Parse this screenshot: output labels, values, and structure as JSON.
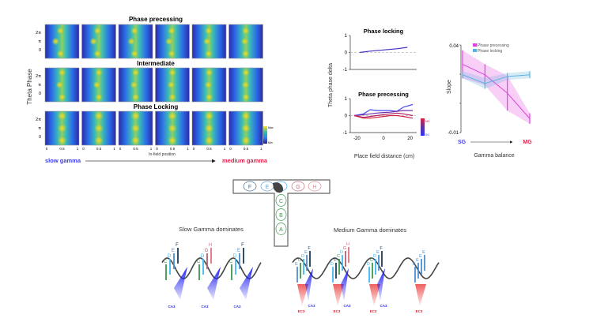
{
  "heatmap_panel": {
    "rows": [
      {
        "title": "Phase precessing"
      },
      {
        "title": "Intermediate"
      },
      {
        "title": "Phase Locking"
      }
    ],
    "y_axis_label": "Theta Phase",
    "y_ticks": [
      "2π",
      "π",
      "0"
    ],
    "x_ticks": [
      "0",
      "0.5",
      "1"
    ],
    "x_axis_label": "In-field position",
    "colorbar": {
      "max": "Max",
      "min": "Min"
    },
    "gradient_left": "slow gamma",
    "gradient_right": "medium gamma",
    "colors": {
      "slow": "#3a3af0",
      "medium": "#e0204a"
    }
  },
  "chart_data": [
    {
      "type": "line",
      "title": "Phase locking",
      "ylabel": "Theta phase delta",
      "xlabel": "Place field distance (cm)",
      "ylim": [
        -1,
        1
      ],
      "y_ticks": [
        "1",
        "0",
        "-1"
      ],
      "x": [
        -18,
        -10,
        0,
        10,
        18
      ],
      "series": [
        {
          "values": [
            0,
            0.08,
            0.15,
            0.22,
            0.3
          ]
        }
      ]
    },
    {
      "type": "line",
      "title": "Phase precessing",
      "ylabel": "Theta phase delta",
      "xlabel": "Place field distance (cm)",
      "xlim": [
        -25,
        25
      ],
      "ylim": [
        -1,
        1
      ],
      "x_ticks": [
        "-20",
        "0",
        "20"
      ],
      "y_ticks": [
        "1",
        "0",
        "-1"
      ],
      "colorbar": {
        "top": "MG",
        "bottom": "SG"
      },
      "x": [
        -22,
        -15,
        -10,
        -5,
        0,
        5,
        10,
        15,
        22
      ],
      "series": [
        {
          "color": "#4a4af5",
          "values": [
            0,
            0.1,
            0.35,
            0.3,
            0.3,
            0.3,
            0.25,
            0.5,
            0.65
          ]
        },
        {
          "color": "#7030b0",
          "values": [
            0,
            0.05,
            0.1,
            0.15,
            0.18,
            0.2,
            0.25,
            0.3,
            0.3
          ]
        },
        {
          "color": "#b02060",
          "values": [
            0,
            -0.1,
            -0.05,
            0,
            0.05,
            0.1,
            0.15,
            0.1,
            0
          ]
        },
        {
          "color": "#d02040",
          "values": [
            0,
            -0.15,
            -0.15,
            -0.1,
            -0.05,
            0,
            0,
            -0.05,
            -0.15
          ]
        }
      ]
    },
    {
      "type": "line",
      "ylabel": "Slope",
      "xlabel": "Gamma balance",
      "ylim": [
        -0.01,
        0.04
      ],
      "y_ticks": [
        "0.04",
        "-0.01"
      ],
      "x_labels": {
        "left": "SG",
        "right": "MG"
      },
      "x": [
        1,
        2,
        3,
        4
      ],
      "legend": "top-right",
      "series": [
        {
          "name": "Phase precessing",
          "color": "#e040e0",
          "values": [
            0.029,
            0.023,
            0.0125,
            -0.002
          ]
        },
        {
          "name": "Phase locking",
          "color": "#60b0e0",
          "values": [
            0.023,
            0.018,
            0.022,
            0.023
          ]
        }
      ]
    }
  ],
  "maze": {
    "arm_labels": [
      "F",
      "E",
      "D",
      "G",
      "H"
    ],
    "stem_labels": [
      "C",
      "B",
      "A"
    ]
  },
  "slow_panel": {
    "title": "Slow Gamma dominates",
    "inputs": [
      "CA3",
      "CA3",
      "CA3"
    ],
    "cycles": [
      [
        "C",
        "D",
        "E",
        "F"
      ],
      [
        "C",
        "D",
        "G",
        "H"
      ],
      [
        "C",
        "D",
        "E",
        "F"
      ]
    ]
  },
  "medium_panel": {
    "title": "Medium Gamma dominates",
    "ca3": [
      "CA3",
      "CA3",
      "CA3"
    ],
    "ec3": [
      "EC3",
      "EC3",
      "EC3",
      "EC3"
    ],
    "cycles": [
      [
        "E",
        "C",
        "D",
        "E",
        "F"
      ],
      [
        "D",
        "F",
        "C",
        "D",
        "G",
        "H"
      ],
      [
        "D",
        "C",
        "D",
        "E",
        "F"
      ],
      [
        "E",
        "E",
        "E",
        "E"
      ]
    ]
  }
}
